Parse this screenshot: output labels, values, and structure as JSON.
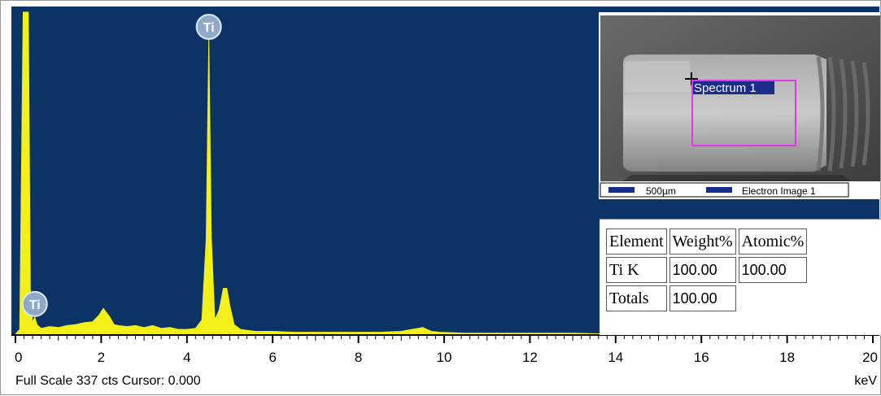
{
  "chart_data": {
    "type": "line",
    "x": [
      0,
      0.1,
      0.18,
      0.25,
      0.3,
      0.35,
      0.4,
      0.45,
      0.5,
      0.6,
      0.8,
      1.0,
      1.2,
      1.4,
      1.6,
      1.8,
      1.95,
      2.05,
      2.2,
      2.3,
      2.4,
      2.6,
      2.8,
      3.0,
      3.2,
      3.4,
      3.6,
      3.8,
      4.0,
      4.2,
      4.35,
      4.45,
      4.51,
      4.57,
      4.65,
      4.75,
      4.85,
      4.93,
      5.0,
      5.1,
      5.25,
      5.4,
      5.6,
      6.0,
      6.5,
      7.0,
      7.5,
      8.0,
      8.5,
      9.0,
      9.5,
      9.7,
      9.9,
      10.5,
      11.0,
      12.0,
      13.0,
      14.0
    ],
    "y": [
      0,
      5,
      337,
      337,
      337,
      40,
      12,
      18,
      10,
      6,
      8,
      7,
      9,
      10,
      12,
      13,
      20,
      27,
      18,
      10,
      9,
      8,
      9,
      7,
      9,
      6,
      7,
      5,
      5,
      6,
      15,
      100,
      310,
      100,
      15,
      25,
      48,
      48,
      30,
      10,
      5,
      4,
      3,
      3,
      2,
      2,
      2,
      2,
      2,
      3,
      7,
      3,
      2,
      1,
      1,
      1,
      1,
      0
    ],
    "xlim": [
      0,
      20
    ],
    "ylim": [
      0,
      337
    ],
    "xticks": [
      "0",
      "2",
      "4",
      "6",
      "8",
      "10",
      "12",
      "14",
      "16",
      "18",
      "20"
    ],
    "xlabel": "keV",
    "peak_labels": [
      {
        "label": "Ti",
        "x": 0.45,
        "y": 35
      },
      {
        "label": "Ti",
        "x": 4.51,
        "y": 337
      }
    ]
  },
  "status": {
    "full_scale": "Full Scale 337 cts Cursor: 0.000",
    "unit": "keV"
  },
  "sem_image": {
    "spectrum_label": "Spectrum 1",
    "scale_label": "500µm",
    "image_label": "Electron Image 1"
  },
  "results_table": {
    "headers": [
      "Element",
      "Weight%",
      "Atomic%"
    ],
    "rows": [
      {
        "element": "Ti K",
        "weight": "100.00",
        "atomic": "100.00"
      }
    ],
    "totals_label": "Totals",
    "totals_value": "100.00"
  },
  "colors": {
    "plot_bg": "#0b3366",
    "spectrum": "#f2f018",
    "roi": "#e535e5",
    "label_badge": "#8fa9c9"
  }
}
